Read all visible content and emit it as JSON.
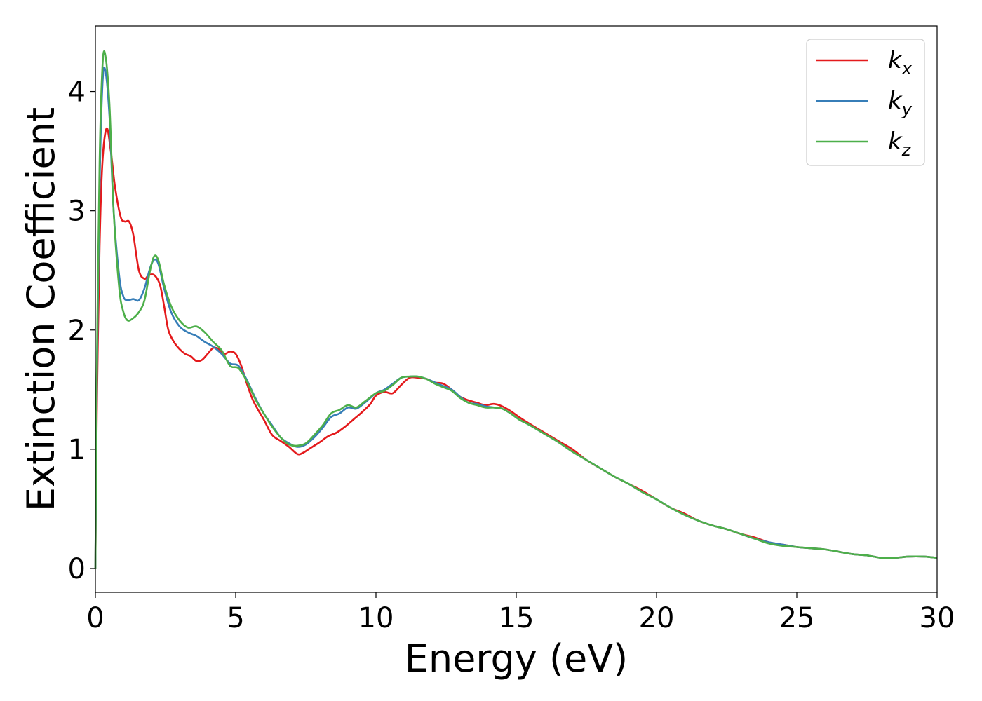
{
  "chart_data": {
    "type": "line",
    "xlabel": "Energy (eV)",
    "ylabel": "Extinction Coefficient",
    "xlim": [
      0,
      30
    ],
    "ylim": [
      -0.2,
      4.55
    ],
    "xticks": [
      0,
      5,
      10,
      15,
      20,
      25,
      30
    ],
    "yticks": [
      0,
      1,
      2,
      3,
      4
    ],
    "grid": false,
    "legend_position": "top-right",
    "series": [
      {
        "name": "k_x",
        "label_base": "k",
        "label_sub": "x",
        "color": "#e41a1c",
        "x": [
          0,
          0.05,
          0.15,
          0.25,
          0.4,
          0.55,
          0.7,
          0.9,
          1.05,
          1.2,
          1.35,
          1.55,
          1.75,
          1.9,
          2.1,
          2.3,
          2.45,
          2.6,
          2.8,
          3.0,
          3.2,
          3.4,
          3.6,
          3.8,
          4.0,
          4.2,
          4.4,
          4.6,
          4.8,
          5.0,
          5.2,
          5.4,
          5.6,
          5.8,
          6.0,
          6.3,
          6.6,
          6.9,
          7.2,
          7.4,
          7.6,
          7.8,
          8.0,
          8.3,
          8.6,
          8.9,
          9.2,
          9.5,
          9.8,
          10.0,
          10.3,
          10.6,
          10.9,
          11.2,
          11.5,
          11.8,
          12.1,
          12.4,
          12.7,
          13.0,
          13.3,
          13.6,
          13.9,
          14.2,
          14.5,
          14.8,
          15.1,
          15.5,
          16.0,
          16.5,
          17.0,
          17.5,
          18.0,
          18.5,
          19.0,
          19.5,
          20.0,
          20.5,
          21.0,
          21.5,
          22.0,
          22.5,
          23.0,
          23.5,
          24.0,
          24.5,
          25.0,
          25.5,
          26.0,
          26.5,
          27.0,
          27.5,
          28.0,
          28.5,
          29.0,
          29.5,
          30.0
        ],
        "values": [
          0.0,
          1.3,
          2.7,
          3.4,
          3.69,
          3.5,
          3.2,
          2.95,
          2.91,
          2.91,
          2.8,
          2.5,
          2.43,
          2.46,
          2.46,
          2.38,
          2.2,
          2.0,
          1.9,
          1.84,
          1.8,
          1.78,
          1.74,
          1.75,
          1.8,
          1.85,
          1.84,
          1.8,
          1.82,
          1.8,
          1.7,
          1.55,
          1.42,
          1.33,
          1.25,
          1.12,
          1.07,
          1.02,
          0.96,
          0.97,
          1.0,
          1.03,
          1.06,
          1.11,
          1.14,
          1.19,
          1.25,
          1.31,
          1.38,
          1.45,
          1.48,
          1.47,
          1.54,
          1.6,
          1.6,
          1.59,
          1.56,
          1.55,
          1.5,
          1.44,
          1.41,
          1.39,
          1.37,
          1.38,
          1.36,
          1.32,
          1.27,
          1.21,
          1.14,
          1.07,
          1.0,
          0.91,
          0.84,
          0.77,
          0.71,
          0.65,
          0.58,
          0.51,
          0.46,
          0.4,
          0.36,
          0.33,
          0.29,
          0.26,
          0.22,
          0.2,
          0.18,
          0.17,
          0.16,
          0.14,
          0.12,
          0.11,
          0.09,
          0.09,
          0.1,
          0.1,
          0.09
        ]
      },
      {
        "name": "k_y",
        "label_base": "k",
        "label_sub": "y",
        "color": "#377eb8",
        "x": [
          0,
          0.05,
          0.15,
          0.25,
          0.35,
          0.5,
          0.65,
          0.85,
          1.0,
          1.15,
          1.35,
          1.55,
          1.75,
          1.95,
          2.1,
          2.25,
          2.45,
          2.7,
          3.0,
          3.3,
          3.6,
          3.9,
          4.2,
          4.5,
          4.8,
          5.1,
          5.4,
          5.7,
          6.0,
          6.3,
          6.6,
          6.9,
          7.2,
          7.5,
          7.8,
          8.1,
          8.4,
          8.7,
          9.0,
          9.3,
          9.6,
          10.0,
          10.3,
          10.6,
          10.9,
          11.2,
          11.5,
          11.8,
          12.1,
          12.4,
          12.7,
          13.0,
          13.3,
          13.6,
          13.9,
          14.2,
          14.5,
          14.8,
          15.1,
          15.5,
          16.0,
          16.5,
          17.0,
          17.5,
          18.0,
          18.5,
          19.0,
          19.5,
          20.0,
          20.5,
          21.0,
          21.5,
          22.0,
          22.5,
          23.0,
          23.5,
          24.0,
          24.5,
          25.0,
          25.5,
          26.0,
          26.5,
          27.0,
          27.5,
          28.0,
          28.5,
          29.0,
          29.5,
          30.0
        ],
        "values": [
          0.0,
          1.5,
          3.2,
          4.05,
          4.18,
          3.8,
          3.0,
          2.45,
          2.28,
          2.25,
          2.26,
          2.25,
          2.35,
          2.52,
          2.59,
          2.55,
          2.35,
          2.15,
          2.03,
          1.98,
          1.95,
          1.9,
          1.86,
          1.8,
          1.72,
          1.7,
          1.58,
          1.43,
          1.3,
          1.2,
          1.1,
          1.05,
          1.02,
          1.04,
          1.1,
          1.18,
          1.27,
          1.3,
          1.35,
          1.34,
          1.39,
          1.47,
          1.5,
          1.55,
          1.6,
          1.61,
          1.61,
          1.59,
          1.56,
          1.53,
          1.5,
          1.44,
          1.39,
          1.38,
          1.36,
          1.35,
          1.34,
          1.3,
          1.25,
          1.2,
          1.13,
          1.06,
          0.98,
          0.91,
          0.84,
          0.77,
          0.71,
          0.64,
          0.58,
          0.51,
          0.45,
          0.4,
          0.36,
          0.33,
          0.29,
          0.25,
          0.22,
          0.2,
          0.18,
          0.17,
          0.16,
          0.14,
          0.12,
          0.11,
          0.09,
          0.09,
          0.1,
          0.1,
          0.09
        ]
      },
      {
        "name": "k_z",
        "label_base": "k",
        "label_sub": "z",
        "color": "#4daf4a",
        "x": [
          0,
          0.05,
          0.15,
          0.25,
          0.35,
          0.5,
          0.65,
          0.85,
          1.0,
          1.15,
          1.35,
          1.55,
          1.75,
          1.95,
          2.1,
          2.25,
          2.45,
          2.7,
          3.0,
          3.3,
          3.6,
          3.9,
          4.2,
          4.5,
          4.8,
          5.1,
          5.4,
          5.7,
          6.0,
          6.3,
          6.6,
          6.9,
          7.2,
          7.5,
          7.8,
          8.1,
          8.4,
          8.7,
          9.0,
          9.3,
          9.6,
          10.0,
          10.3,
          10.6,
          10.9,
          11.2,
          11.5,
          11.8,
          12.1,
          12.4,
          12.7,
          13.0,
          13.3,
          13.6,
          13.9,
          14.2,
          14.5,
          14.8,
          15.1,
          15.5,
          16.0,
          16.5,
          17.0,
          17.5,
          18.0,
          18.5,
          19.0,
          19.5,
          20.0,
          20.5,
          21.0,
          21.5,
          22.0,
          22.5,
          23.0,
          23.5,
          24.0,
          24.5,
          25.0,
          25.5,
          26.0,
          26.5,
          27.0,
          27.5,
          28.0,
          28.5,
          29.0,
          29.5,
          30.0
        ],
        "values": [
          0.0,
          1.6,
          3.4,
          4.2,
          4.31,
          3.9,
          3.0,
          2.35,
          2.15,
          2.08,
          2.1,
          2.15,
          2.25,
          2.5,
          2.62,
          2.58,
          2.38,
          2.2,
          2.08,
          2.02,
          2.03,
          1.98,
          1.9,
          1.83,
          1.7,
          1.68,
          1.57,
          1.42,
          1.3,
          1.19,
          1.1,
          1.04,
          1.03,
          1.05,
          1.12,
          1.2,
          1.3,
          1.33,
          1.37,
          1.35,
          1.4,
          1.47,
          1.49,
          1.54,
          1.6,
          1.61,
          1.61,
          1.59,
          1.55,
          1.52,
          1.49,
          1.43,
          1.39,
          1.37,
          1.35,
          1.35,
          1.34,
          1.3,
          1.25,
          1.2,
          1.13,
          1.06,
          0.98,
          0.91,
          0.84,
          0.77,
          0.71,
          0.64,
          0.58,
          0.51,
          0.45,
          0.4,
          0.36,
          0.33,
          0.29,
          0.25,
          0.21,
          0.19,
          0.18,
          0.17,
          0.16,
          0.14,
          0.12,
          0.11,
          0.09,
          0.09,
          0.1,
          0.1,
          0.09
        ]
      }
    ]
  }
}
